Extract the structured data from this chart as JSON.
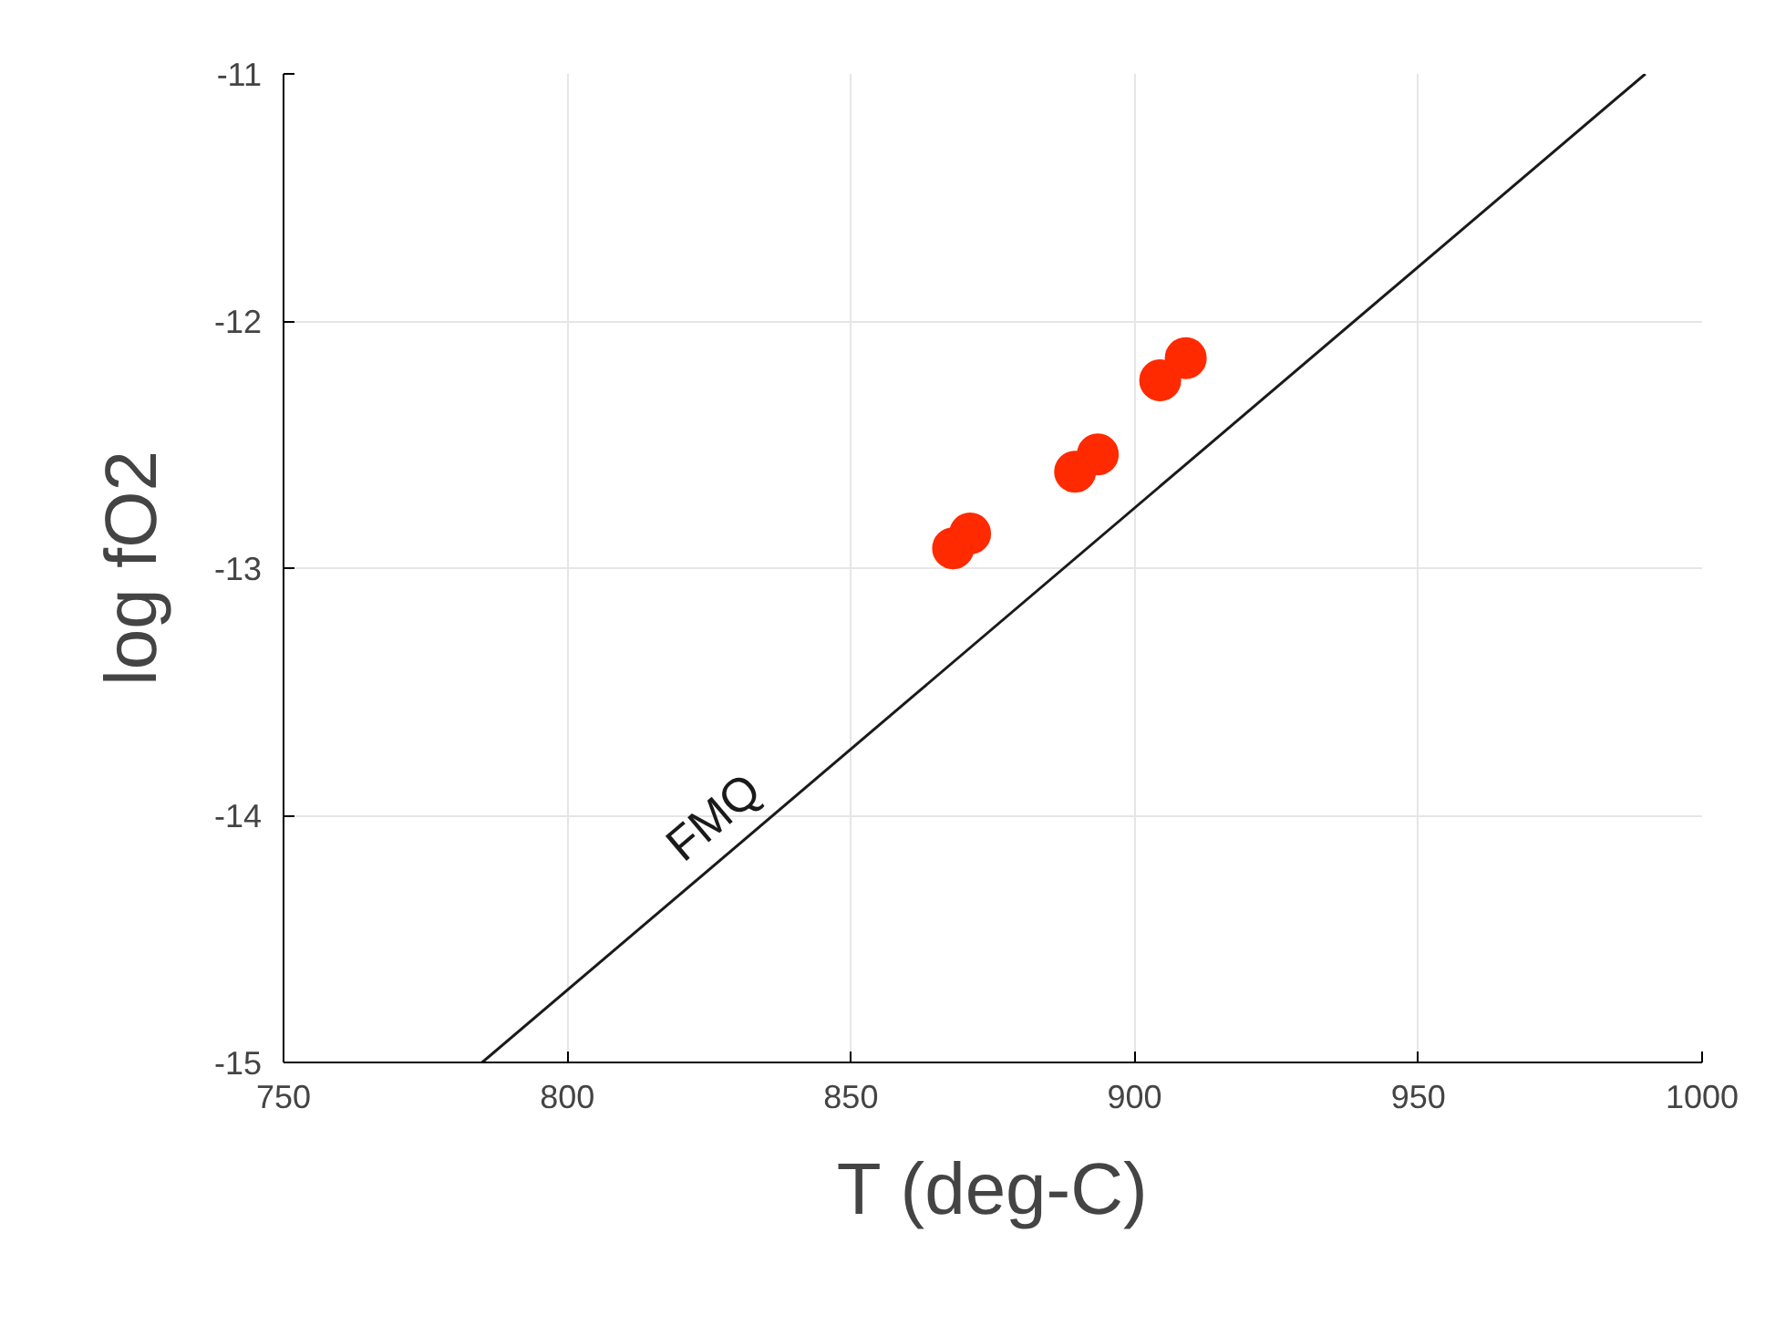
{
  "chart_data": {
    "type": "scatter",
    "xlabel": "T (deg-C)",
    "ylabel": "log fO2",
    "xlim": [
      750,
      1000
    ],
    "xticks": [
      750,
      800,
      850,
      900,
      950,
      1000
    ],
    "ylim": [
      -15,
      -11
    ],
    "yticks": [
      -15,
      -14,
      -13,
      -12,
      -11
    ],
    "grid": true,
    "series": [
      {
        "x": [
          868,
          871,
          889.5,
          893.5,
          904.5,
          909
        ],
        "values": [
          -12.92,
          -12.86,
          -12.61,
          -12.54,
          -12.24,
          -12.15
        ],
        "color": "#ff2a00",
        "marker": "circle"
      },
      {
        "name": "FMQ",
        "type": "line",
        "x": [
          785,
          990
        ],
        "values": [
          -15,
          -11
        ],
        "color": "#1a1a1a",
        "line_style": "solid"
      }
    ]
  }
}
